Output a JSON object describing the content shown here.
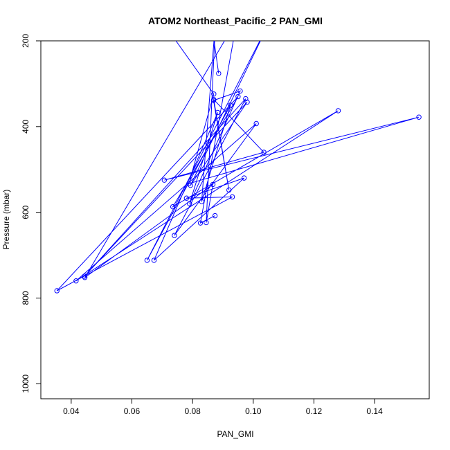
{
  "chart_data": {
    "type": "line",
    "title": "ATOM2 Northeast_Pacific_2 PAN_GMI",
    "xlabel": "PAN_GMI",
    "ylabel": "Pressure (mbar)",
    "xlim": [
      0.03,
      0.158
    ],
    "ylim": [
      1035,
      200
    ],
    "y_reversed": true,
    "x_ticks": [
      0.04,
      0.06,
      0.08,
      0.1,
      0.12,
      0.14
    ],
    "x_tick_labels": [
      "0.04",
      "0.06",
      "0.08",
      "0.10",
      "0.12",
      "0.14"
    ],
    "y_ticks": [
      200,
      400,
      600,
      800,
      1000
    ],
    "y_tick_labels": [
      "200",
      "400",
      "600",
      "800",
      "1000"
    ],
    "line_color": "#0000ff",
    "series": [
      {
        "x": [
          0.0886,
          0.0861,
          0.0695,
          0.087,
          0.0788,
          0.1546,
          0.0707,
          0.1035,
          0.087,
          0.092,
          0.0869,
          0.0957,
          0.079,
          0.0883,
          0.0673,
          0.097,
          0.078,
          0.0931,
          0.0353,
          0.095,
          0.0735,
          0.128,
          0.0416,
          0.101,
          0.074,
          0.0975,
          0.0444,
          0.098,
          0.0793,
          0.1058,
          0.065,
          0.0925,
          0.083,
          0.0876,
          0.0845,
          0.0867,
          0.0445,
          0.0947,
          0.0826,
          0.0874
        ],
        "y": [
          276,
          150,
          150,
          324,
          533,
          378,
          525,
          460,
          337,
          548,
          339,
          317,
          580,
          367,
          712,
          520,
          567,
          564,
          783,
          330,
          587,
          363,
          760,
          393,
          654,
          335,
          749,
          343,
          537,
          150,
          712,
          350,
          575,
          150,
          624,
          535,
          752,
          150,
          625,
          608
        ]
      }
    ]
  }
}
